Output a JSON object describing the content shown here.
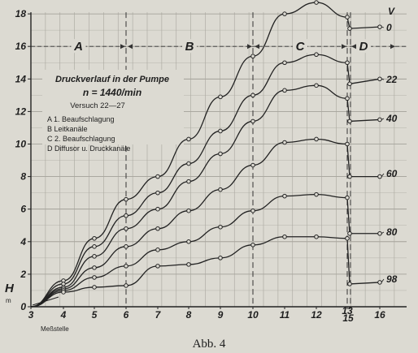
{
  "chart_data": {
    "type": "line",
    "title": "Druckverlauf in der Pumpe",
    "subtitle": "n = 1440/min",
    "subtitle2": "Versuch 22—27",
    "ylabel": "H",
    "yunit": "m",
    "xlabel": "Meßstelle",
    "caption": "Abb. 4",
    "ylim": [
      0,
      18
    ],
    "yticks": [
      "0",
      "2",
      "4",
      "6",
      "8",
      "10",
      "12",
      "14",
      "16",
      "18"
    ],
    "x_positions": [
      3,
      4,
      5,
      6,
      7,
      8,
      9,
      10,
      11,
      12,
      13,
      15,
      16
    ],
    "x_tick_labels": [
      {
        "x": 3,
        "label": "3"
      },
      {
        "x": 4,
        "label": "4"
      },
      {
        "x": 5,
        "label": "5"
      },
      {
        "x": 6,
        "label": "6"
      },
      {
        "x": 7,
        "label": "7"
      },
      {
        "x": 8,
        "label": "8"
      },
      {
        "x": 9,
        "label": "9"
      },
      {
        "x": 10,
        "label": "10"
      },
      {
        "x": 11,
        "label": "11"
      },
      {
        "x": 12,
        "label": "12"
      },
      {
        "x": 13,
        "label": "13"
      },
      {
        "x": 15,
        "label": "15"
      },
      {
        "x": 16,
        "label": "16"
      }
    ],
    "regions": [
      {
        "label": "A",
        "from": 3,
        "to": 6
      },
      {
        "label": "B",
        "from": 6,
        "to": 10
      },
      {
        "label": "C",
        "from": 10,
        "to": 13
      },
      {
        "label": "D",
        "from": 13,
        "to": 16
      }
    ],
    "region_boundaries": [
      6,
      10,
      13,
      15
    ],
    "legend": [
      "A 1. Beaufschlagung",
      "B Leitkanäle",
      "C 2. Beaufschlagung",
      "D Diffusor u. Druckkanäle"
    ],
    "series_header": "V",
    "series": [
      {
        "name": "0",
        "x": [
          4,
          5,
          6,
          7,
          8,
          9,
          10,
          11,
          12,
          13,
          15,
          16
        ],
        "values": [
          1.6,
          4.2,
          6.6,
          8.0,
          10.3,
          12.9,
          15.4,
          18.0,
          18.7,
          17.8,
          17.1,
          17.2
        ]
      },
      {
        "name": "22",
        "x": [
          4,
          5,
          6,
          7,
          8,
          9,
          10,
          11,
          12,
          13,
          15,
          16
        ],
        "values": [
          1.4,
          3.7,
          5.6,
          7.0,
          8.8,
          10.8,
          13.0,
          15.0,
          15.5,
          15.0,
          13.7,
          14.0
        ]
      },
      {
        "name": "40",
        "x": [
          4,
          5,
          6,
          7,
          8,
          9,
          10,
          11,
          12,
          13,
          15,
          16
        ],
        "values": [
          1.2,
          3.1,
          4.8,
          6.0,
          7.7,
          9.4,
          11.4,
          13.3,
          13.6,
          12.8,
          11.4,
          11.5
        ]
      },
      {
        "name": "60",
        "x": [
          4,
          5,
          6,
          7,
          8,
          9,
          10,
          11,
          12,
          13,
          15,
          16
        ],
        "values": [
          1.1,
          2.4,
          3.7,
          4.8,
          5.9,
          7.2,
          8.7,
          10.1,
          10.3,
          10.0,
          8.0,
          8.0
        ]
      },
      {
        "name": "80",
        "x": [
          4,
          5,
          6,
          7,
          8,
          9,
          10,
          11,
          12,
          13,
          15,
          16
        ],
        "values": [
          1.0,
          1.8,
          2.5,
          3.5,
          4.0,
          4.9,
          5.9,
          6.8,
          6.9,
          6.7,
          4.5,
          4.5
        ]
      },
      {
        "name": "98",
        "x": [
          4,
          5,
          6,
          7,
          8,
          9,
          10,
          11,
          12,
          13,
          15,
          16
        ],
        "values": [
          0.9,
          1.2,
          1.3,
          2.5,
          2.6,
          3.0,
          3.8,
          4.3,
          4.3,
          4.2,
          1.4,
          1.5
        ]
      }
    ],
    "grid": true,
    "legend_placement": "top-left"
  }
}
